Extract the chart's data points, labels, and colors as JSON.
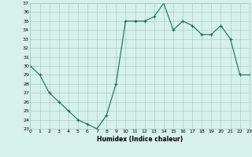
{
  "x": [
    0,
    1,
    2,
    3,
    4,
    5,
    6,
    7,
    8,
    9,
    10,
    11,
    12,
    13,
    14,
    15,
    16,
    17,
    18,
    19,
    20,
    21,
    22,
    23
  ],
  "y": [
    30,
    29,
    27,
    26,
    25,
    24,
    23.5,
    23,
    24.5,
    28,
    35,
    35,
    35,
    35.5,
    37,
    34,
    35,
    34.5,
    33.5,
    33.5,
    34.5,
    33,
    29,
    29
  ],
  "xlabel": "Humidex (Indice chaleur)",
  "ylabel": "",
  "ylim": [
    23,
    37
  ],
  "xlim": [
    0,
    23
  ],
  "yticks": [
    23,
    24,
    25,
    26,
    27,
    28,
    29,
    30,
    31,
    32,
    33,
    34,
    35,
    36,
    37
  ],
  "xticks": [
    0,
    1,
    2,
    3,
    4,
    5,
    6,
    7,
    8,
    9,
    10,
    11,
    12,
    13,
    14,
    15,
    16,
    17,
    18,
    19,
    20,
    21,
    22,
    23
  ],
  "line_color": "#1a6b5a",
  "bg_color": "#d6f0ec",
  "grid_color": "#a0c8c0",
  "marker": "+"
}
